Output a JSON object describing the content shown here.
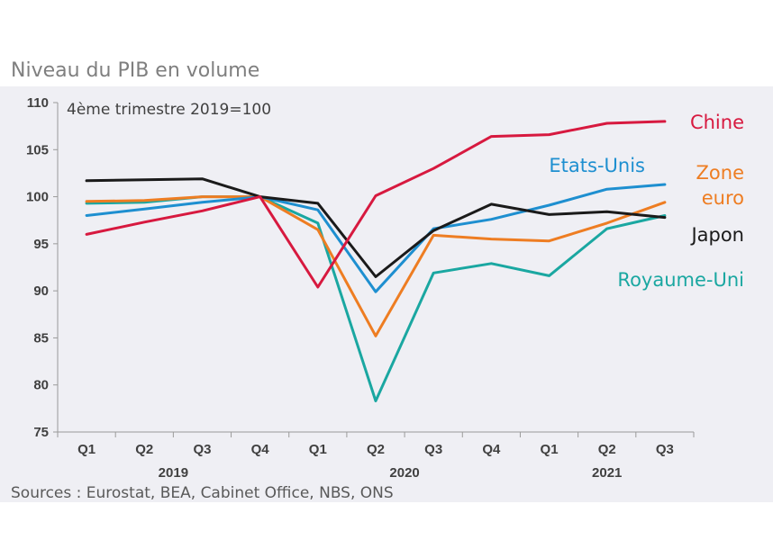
{
  "chart_data": {
    "type": "line",
    "title": "Niveau du PIB en volume",
    "annotation": "4ème trimestre 2019=100",
    "source": "Sources : Eurostat, BEA, Cabinet Office, NBS, ONS",
    "ylim": [
      75,
      110
    ],
    "yticks": [
      "75",
      "80",
      "85",
      "90",
      "95",
      "100",
      "105",
      "110"
    ],
    "categories": [
      "Q1",
      "Q2",
      "Q3",
      "Q4",
      "Q1",
      "Q2",
      "Q3",
      "Q4",
      "Q1",
      "Q2",
      "Q3"
    ],
    "years": [
      {
        "label": "2019",
        "start": 0,
        "end": 3
      },
      {
        "label": "2020",
        "start": 4,
        "end": 7
      },
      {
        "label": "2021",
        "start": 8,
        "end": 10
      }
    ],
    "grid": false,
    "series": [
      {
        "name": "Chine",
        "color": "#d7193f",
        "label_lines": [
          "Chine"
        ],
        "values": [
          96.0,
          97.3,
          98.5,
          100.0,
          90.4,
          100.1,
          103.0,
          106.4,
          106.6,
          107.8,
          108.0
        ]
      },
      {
        "name": "Etats-Unis",
        "color": "#1e8fd0",
        "label_lines": [
          "Etats-Unis"
        ],
        "values": [
          98.0,
          98.7,
          99.4,
          100.0,
          98.6,
          89.9,
          96.6,
          97.6,
          99.1,
          100.8,
          101.3
        ]
      },
      {
        "name": "Zone euro",
        "color": "#ee7d22",
        "label_lines": [
          "Zone",
          "euro"
        ],
        "values": [
          99.5,
          99.6,
          100.0,
          100.0,
          96.5,
          85.2,
          95.9,
          95.5,
          95.3,
          97.2,
          99.4
        ]
      },
      {
        "name": "Japon",
        "color": "#1a1a1a",
        "label_lines": [
          "Japon"
        ],
        "values": [
          101.7,
          101.8,
          101.9,
          100.0,
          99.3,
          91.5,
          96.4,
          99.2,
          98.1,
          98.4,
          97.8
        ]
      },
      {
        "name": "Royaume-Uni",
        "color": "#1aa7a1",
        "label_lines": [
          "Royaume-Uni"
        ],
        "values": [
          99.3,
          99.4,
          100.0,
          100.0,
          97.2,
          78.3,
          91.9,
          92.9,
          91.6,
          96.6,
          98.0
        ]
      }
    ]
  }
}
